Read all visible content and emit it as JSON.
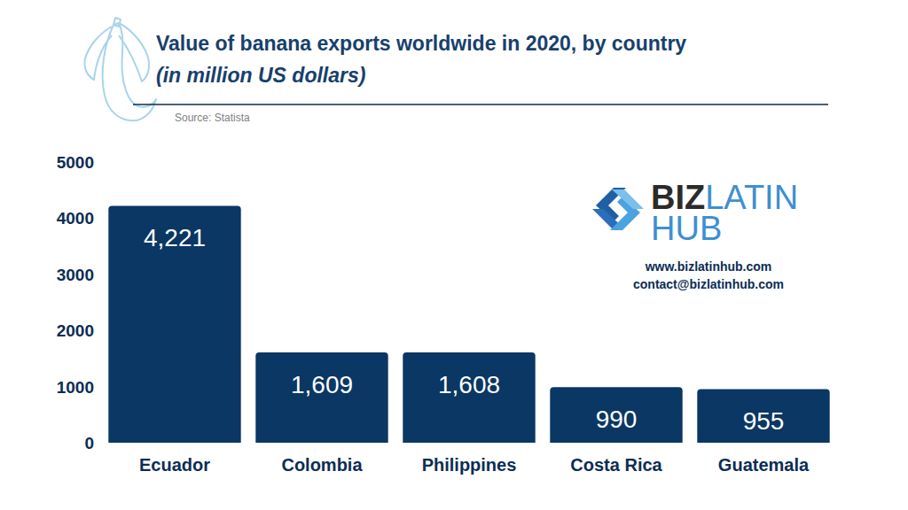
{
  "chart_data": {
    "type": "bar",
    "title": "Value of banana exports worldwide in 2020, by country",
    "subtitle": "(in million US dollars)",
    "annotations": [
      "Source: Statista",
      "BIZ",
      "LATIN",
      "HUB",
      "www.bizlatinhub.com",
      "contact@bizlatinhub.com"
    ],
    "categories": [
      "Ecuador",
      "Colombia",
      "Philippines",
      "Costa Rica",
      "Guatemala"
    ],
    "values": [
      4221,
      1609,
      1608,
      990,
      955
    ],
    "value_labels": [
      "4,221",
      "1,609",
      "1,608",
      "990",
      "955"
    ],
    "color": "#0a3764",
    "ylim": [
      0,
      5000
    ],
    "yticks": [
      0,
      1000,
      2000,
      3000,
      4000,
      5000
    ],
    "grid": false,
    "data_labels": true
  }
}
